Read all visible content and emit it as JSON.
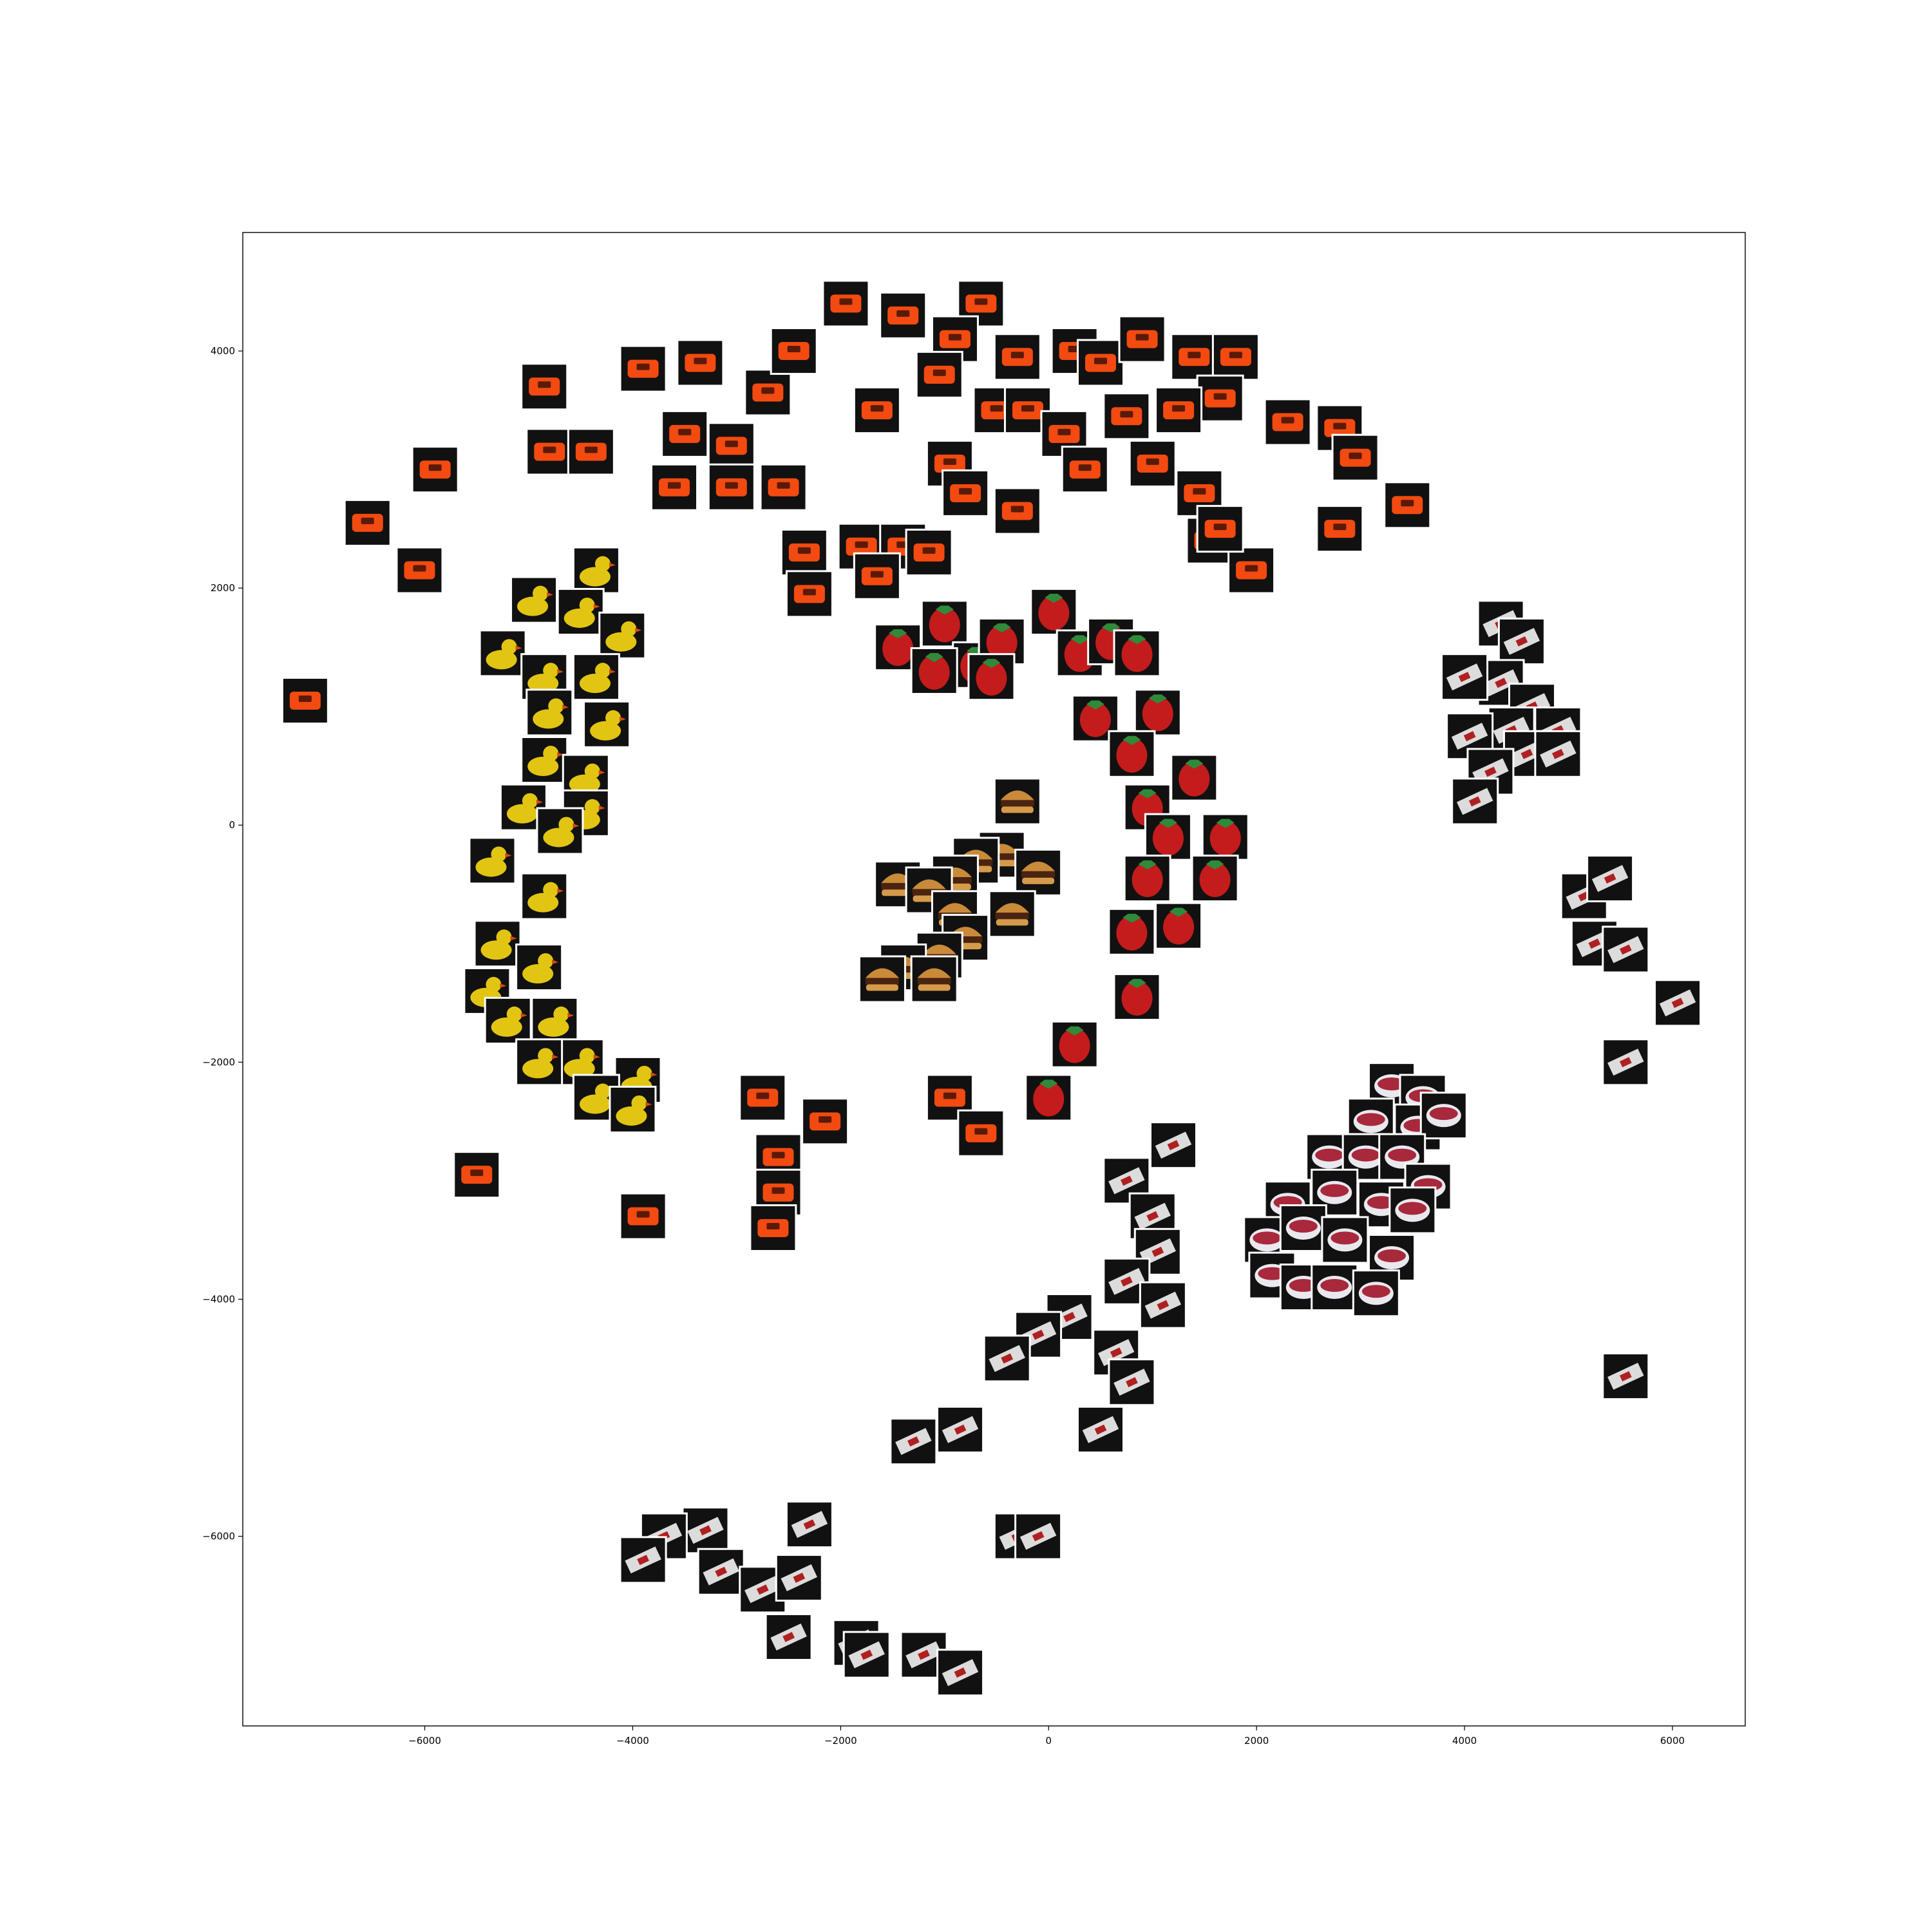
{
  "chart_data": {
    "type": "scatter",
    "title": "",
    "xlabel": "",
    "ylabel": "",
    "xlim": [
      -7750,
      6700
    ],
    "ylim": [
      -7600,
      5000
    ],
    "grid": false,
    "legend": "none",
    "x_ticks": [
      {
        "value": -6000,
        "label": "−6000"
      },
      {
        "value": -4000,
        "label": "−4000"
      },
      {
        "value": -2000,
        "label": "−2000"
      },
      {
        "value": 0,
        "label": "0"
      },
      {
        "value": 2000,
        "label": "2000"
      },
      {
        "value": 4000,
        "label": "4000"
      },
      {
        "value": 6000,
        "label": "6000"
      }
    ],
    "y_ticks": [
      {
        "value": 4000,
        "label": "4000"
      },
      {
        "value": 2000,
        "label": "2000"
      },
      {
        "value": 0,
        "label": "0"
      },
      {
        "value": -2000,
        "label": "−2000"
      },
      {
        "value": -4000,
        "label": "−4000"
      },
      {
        "value": -6000,
        "label": "−6000"
      }
    ],
    "series": [
      {
        "color": "#f24a10",
        "marker": "toy-car-thumbnail",
        "points": [
          [
            -4850,
            3700
          ],
          [
            -5900,
            3000
          ],
          [
            -6550,
            2550
          ],
          [
            -6050,
            2150
          ],
          [
            -7150,
            1050
          ],
          [
            -4800,
            3150
          ],
          [
            -4400,
            3150
          ],
          [
            -3900,
            3850
          ],
          [
            -3350,
            3900
          ],
          [
            -3500,
            3300
          ],
          [
            -3050,
            3200
          ],
          [
            -3600,
            2850
          ],
          [
            -3050,
            2850
          ],
          [
            -2700,
            3650
          ],
          [
            -2550,
            2850
          ],
          [
            -2450,
            4000
          ],
          [
            -1950,
            4400
          ],
          [
            -1400,
            4300
          ],
          [
            -650,
            4400
          ],
          [
            -900,
            4100
          ],
          [
            -300,
            3950
          ],
          [
            250,
            4000
          ],
          [
            500,
            3900
          ],
          [
            900,
            4100
          ],
          [
            1400,
            3950
          ],
          [
            1800,
            3950
          ],
          [
            1650,
            3600
          ],
          [
            2300,
            3400
          ],
          [
            2800,
            3350
          ],
          [
            2950,
            3100
          ],
          [
            3450,
            2700
          ],
          [
            2800,
            2500
          ],
          [
            1550,
            2400
          ],
          [
            1950,
            2150
          ],
          [
            -1050,
            3800
          ],
          [
            -1650,
            3500
          ],
          [
            -950,
            3050
          ],
          [
            -500,
            3500
          ],
          [
            -800,
            2800
          ],
          [
            -300,
            2650
          ],
          [
            -200,
            3500
          ],
          [
            150,
            3300
          ],
          [
            350,
            3000
          ],
          [
            750,
            3450
          ],
          [
            1000,
            3050
          ],
          [
            1250,
            3500
          ],
          [
            1450,
            2800
          ],
          [
            1650,
            2500
          ],
          [
            -2350,
            2300
          ],
          [
            -1800,
            2350
          ],
          [
            -1400,
            2350
          ],
          [
            -1650,
            2100
          ],
          [
            -1150,
            2300
          ],
          [
            -2300,
            1950
          ],
          [
            -2750,
            -2300
          ],
          [
            -2150,
            -2500
          ],
          [
            -2600,
            -2800
          ],
          [
            -2600,
            -3100
          ],
          [
            -2650,
            -3400
          ],
          [
            -3900,
            -3300
          ],
          [
            -5500,
            -2950
          ],
          [
            -950,
            -2300
          ],
          [
            -650,
            -2600
          ]
        ]
      },
      {
        "color": "#e2c512",
        "marker": "rubber-duck-thumbnail",
        "points": [
          [
            -4350,
            2150
          ],
          [
            -4950,
            1900
          ],
          [
            -4500,
            1800
          ],
          [
            -4100,
            1600
          ],
          [
            -5250,
            1450
          ],
          [
            -4850,
            1250
          ],
          [
            -4350,
            1250
          ],
          [
            -4800,
            950
          ],
          [
            -4250,
            850
          ],
          [
            -4850,
            550
          ],
          [
            -4450,
            400
          ],
          [
            -5050,
            150
          ],
          [
            -4450,
            100
          ],
          [
            -4700,
            -50
          ],
          [
            -5350,
            -300
          ],
          [
            -4850,
            -600
          ],
          [
            -5300,
            -1000
          ],
          [
            -4900,
            -1200
          ],
          [
            -5400,
            -1400
          ],
          [
            -4750,
            -1650
          ],
          [
            -5200,
            -1650
          ],
          [
            -4500,
            -2000
          ],
          [
            -4900,
            -2000
          ],
          [
            -3950,
            -2150
          ],
          [
            -4350,
            -2300
          ],
          [
            -4000,
            -2400
          ]
        ]
      },
      {
        "color": "#c41c1c",
        "marker": "strawberry-thumbnail",
        "points": [
          [
            -1450,
            1500
          ],
          [
            -1000,
            1700
          ],
          [
            -700,
            1350
          ],
          [
            -450,
            1550
          ],
          [
            50,
            1800
          ],
          [
            300,
            1450
          ],
          [
            600,
            1550
          ],
          [
            850,
            1450
          ],
          [
            -1100,
            1300
          ],
          [
            -550,
            1250
          ],
          [
            450,
            900
          ],
          [
            1050,
            950
          ],
          [
            800,
            600
          ],
          [
            1400,
            400
          ],
          [
            950,
            150
          ],
          [
            1150,
            -100
          ],
          [
            1700,
            -100
          ],
          [
            950,
            -450
          ],
          [
            1600,
            -450
          ],
          [
            800,
            -900
          ],
          [
            1250,
            -850
          ],
          [
            850,
            -1450
          ],
          [
            250,
            -1850
          ],
          [
            0,
            -2300
          ]
        ]
      },
      {
        "color": "#b06a1c",
        "marker": "burger-thumbnail",
        "points": [
          [
            -300,
            200
          ],
          [
            -450,
            -250
          ],
          [
            -700,
            -300
          ],
          [
            -900,
            -450
          ],
          [
            -1450,
            -500
          ],
          [
            -1150,
            -550
          ],
          [
            -900,
            -750
          ],
          [
            -800,
            -950
          ],
          [
            -1050,
            -1100
          ],
          [
            -1400,
            -1200
          ],
          [
            -1100,
            -1300
          ],
          [
            -1600,
            -1300
          ],
          [
            -100,
            -400
          ],
          [
            -350,
            -750
          ]
        ]
      },
      {
        "color": "#dcdcdc",
        "marker": "eraser-box-thumbnail",
        "points": [
          [
            4350,
            1700
          ],
          [
            4550,
            1550
          ],
          [
            4350,
            1200
          ],
          [
            4000,
            1250
          ],
          [
            4650,
            1000
          ],
          [
            4450,
            800
          ],
          [
            4900,
            800
          ],
          [
            4050,
            750
          ],
          [
            4600,
            600
          ],
          [
            4900,
            600
          ],
          [
            4250,
            450
          ],
          [
            4100,
            200
          ],
          [
            5150,
            -600
          ],
          [
            5400,
            -450
          ],
          [
            5250,
            -1000
          ],
          [
            5550,
            -1050
          ],
          [
            6050,
            -1500
          ],
          [
            5550,
            -2000
          ],
          [
            5550,
            -4650
          ],
          [
            1200,
            -2700
          ],
          [
            750,
            -3000
          ],
          [
            1000,
            -3300
          ],
          [
            1050,
            -3600
          ],
          [
            750,
            -3850
          ],
          [
            1100,
            -4050
          ],
          [
            650,
            -4450
          ],
          [
            200,
            -4150
          ],
          [
            -100,
            -4300
          ],
          [
            -400,
            -4500
          ],
          [
            500,
            -5100
          ],
          [
            -850,
            -5100
          ],
          [
            -1300,
            -5200
          ],
          [
            800,
            -4700
          ],
          [
            -300,
            -6000
          ],
          [
            -100,
            -6000
          ],
          [
            -2300,
            -5900
          ],
          [
            -3300,
            -5950
          ],
          [
            -3700,
            -6000
          ],
          [
            -3900,
            -6200
          ],
          [
            -3150,
            -6300
          ],
          [
            -2750,
            -6450
          ],
          [
            -2400,
            -6350
          ],
          [
            -2500,
            -6850
          ],
          [
            -1850,
            -6900
          ],
          [
            -1750,
            -7000
          ],
          [
            -1200,
            -7000
          ],
          [
            -850,
            -7150
          ]
        ]
      },
      {
        "color": "#a8283c",
        "marker": "cream-tub-thumbnail",
        "points": [
          [
            3300,
            -2200
          ],
          [
            3600,
            -2300
          ],
          [
            3100,
            -2500
          ],
          [
            3550,
            -2550
          ],
          [
            3800,
            -2450
          ],
          [
            2700,
            -2800
          ],
          [
            3050,
            -2800
          ],
          [
            3400,
            -2800
          ],
          [
            3650,
            -3050
          ],
          [
            2300,
            -3200
          ],
          [
            2750,
            -3100
          ],
          [
            3200,
            -3200
          ],
          [
            3500,
            -3250
          ],
          [
            2100,
            -3500
          ],
          [
            2450,
            -3400
          ],
          [
            2850,
            -3500
          ],
          [
            3300,
            -3650
          ],
          [
            2150,
            -3800
          ],
          [
            2450,
            -3900
          ],
          [
            2750,
            -3900
          ],
          [
            3150,
            -3950
          ]
        ]
      }
    ]
  }
}
